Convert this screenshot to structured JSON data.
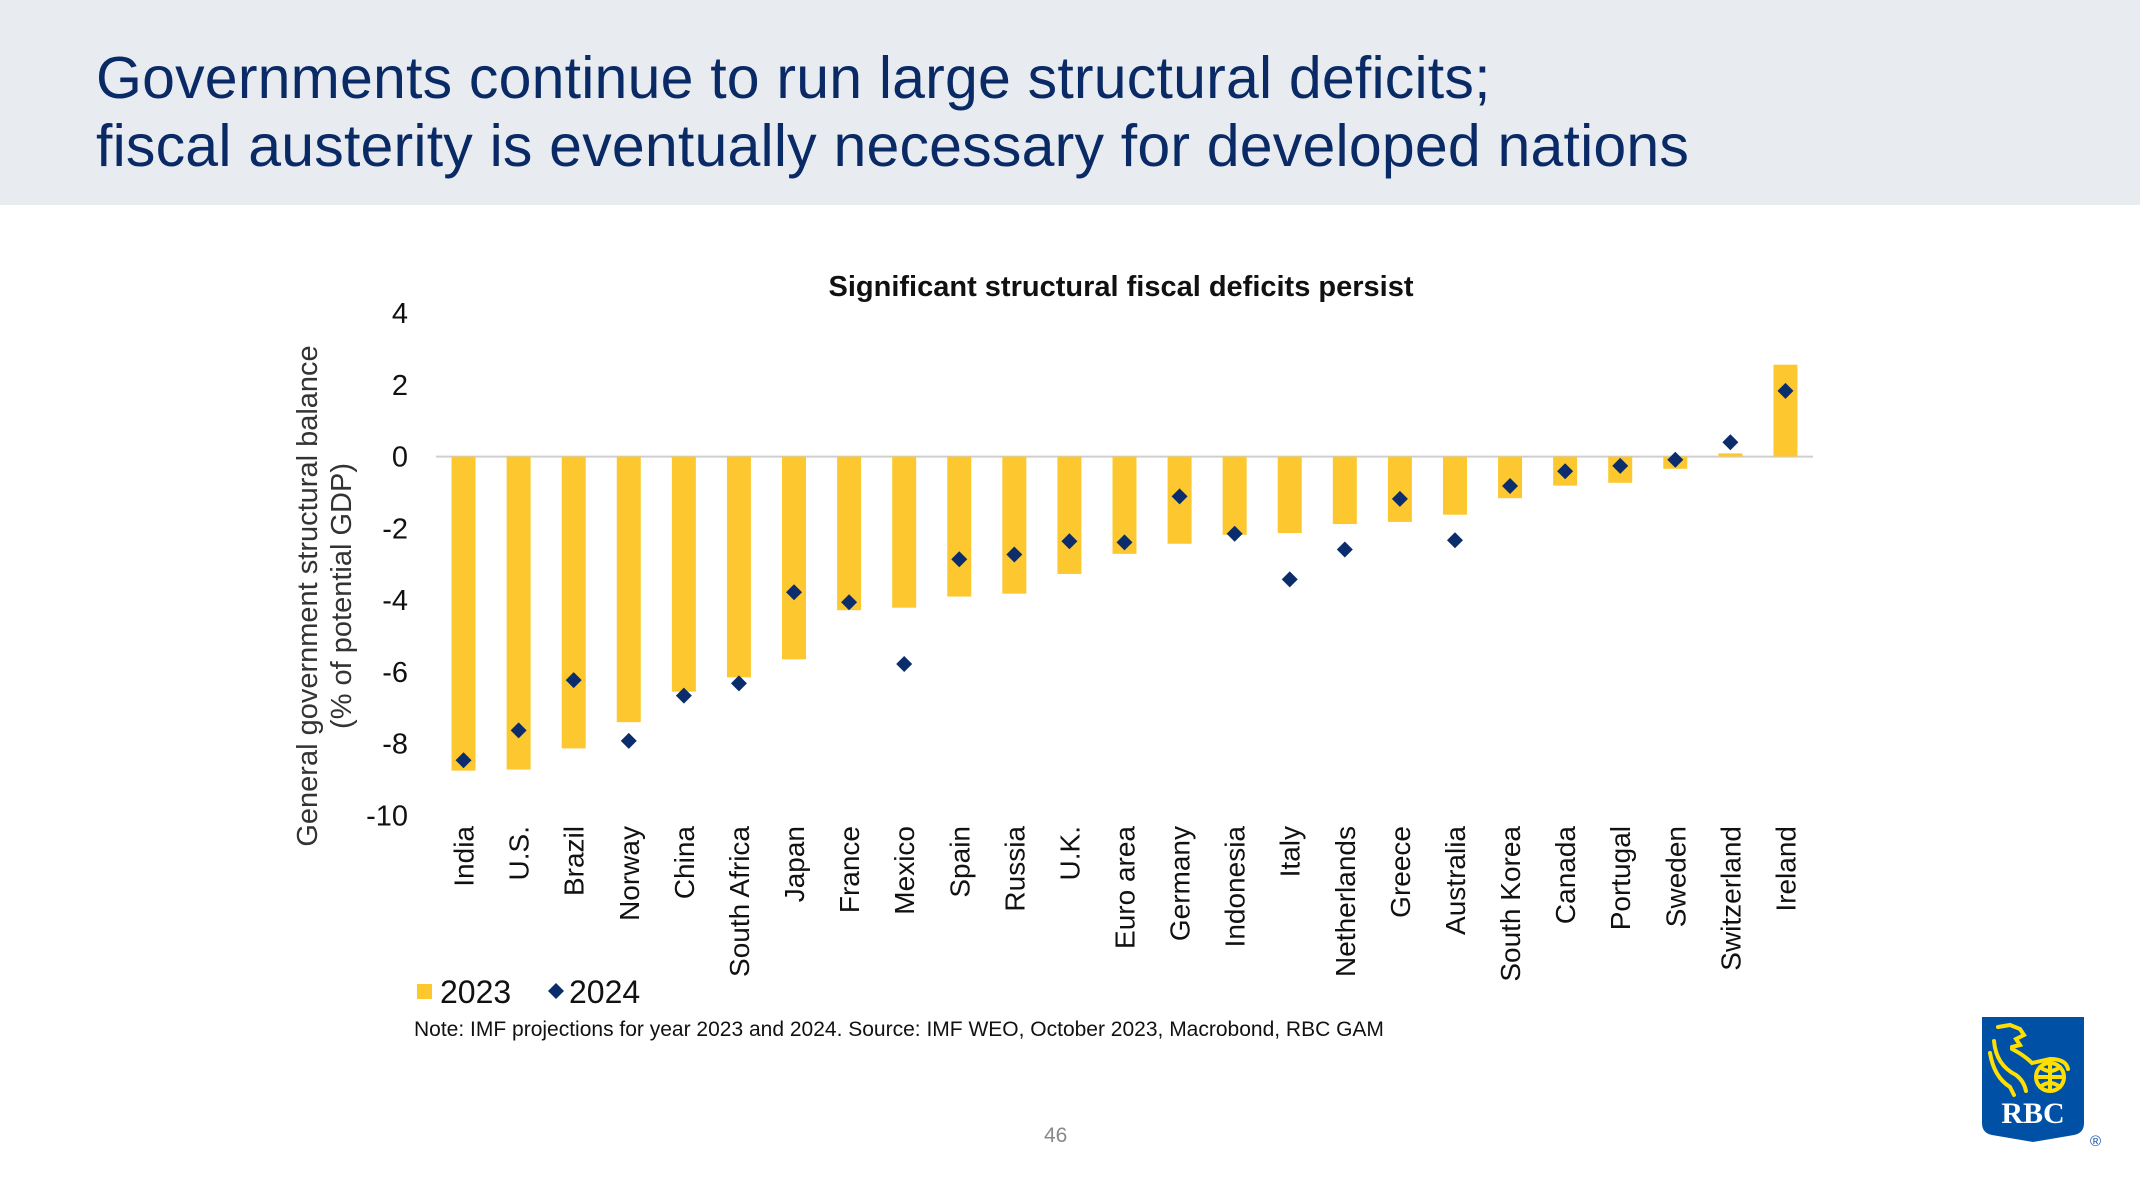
{
  "slide": {
    "title_line1": "Governments continue to run large structural deficits;",
    "title_line2": "fiscal austerity is eventually necessary for developed nations",
    "note": "Note: IMF projections for year 2023 and 2024. Source: IMF WEO, October 2023, Macrobond, RBC GAM",
    "page_number": "46",
    "logo_text": "RBC",
    "logo_registered": "®"
  },
  "colors": {
    "bar_2023": "#fdc82f",
    "marker_2024": "#0b2d6b",
    "title": "#0a2a66",
    "header_band": "#e8ecf1",
    "logo_blue": "#0051a5",
    "logo_yellow": "#fedf01"
  },
  "chart_data": {
    "type": "bar",
    "title": "Significant structural fiscal deficits persist",
    "xlabel": "",
    "ylabel_line1": "General government structural balance",
    "ylabel_line2": "(% of potential GDP)",
    "ylim": [
      -10,
      4
    ],
    "yticks": [
      4,
      2,
      0,
      -2,
      -4,
      -6,
      -8,
      -10
    ],
    "grid": false,
    "legend_position": "bottom-left",
    "categories": [
      "India",
      "U.S.",
      "Brazil",
      "Norway",
      "China",
      "South Africa",
      "Japan",
      "France",
      "Mexico",
      "Spain",
      "Russia",
      "U.K.",
      "Euro area",
      "Germany",
      "Indonesia",
      "Italy",
      "Netherlands",
      "Greece",
      "Australia",
      "South Korea",
      "Canada",
      "Portugal",
      "Sweden",
      "Switzerland",
      "Ireland"
    ],
    "series": [
      {
        "name": "2023",
        "kind": "bar",
        "values": [
          -8.75,
          -8.72,
          -8.13,
          -7.4,
          -6.55,
          -6.15,
          -5.65,
          -4.28,
          -4.21,
          -3.9,
          -3.82,
          -3.27,
          -2.71,
          -2.43,
          -2.18,
          -2.13,
          -1.88,
          -1.82,
          -1.62,
          -1.16,
          -0.81,
          -0.73,
          -0.34,
          0.09,
          2.56
        ]
      },
      {
        "name": "2024",
        "kind": "diamond-marker",
        "values": [
          -8.46,
          -7.63,
          -6.23,
          -7.92,
          -6.66,
          -6.32,
          -3.78,
          -4.06,
          -5.78,
          -2.86,
          -2.73,
          -2.36,
          -2.39,
          -1.11,
          -2.15,
          -3.42,
          -2.59,
          -1.18,
          -2.33,
          -0.82,
          -0.41,
          -0.26,
          -0.09,
          0.4,
          1.83
        ]
      }
    ]
  }
}
